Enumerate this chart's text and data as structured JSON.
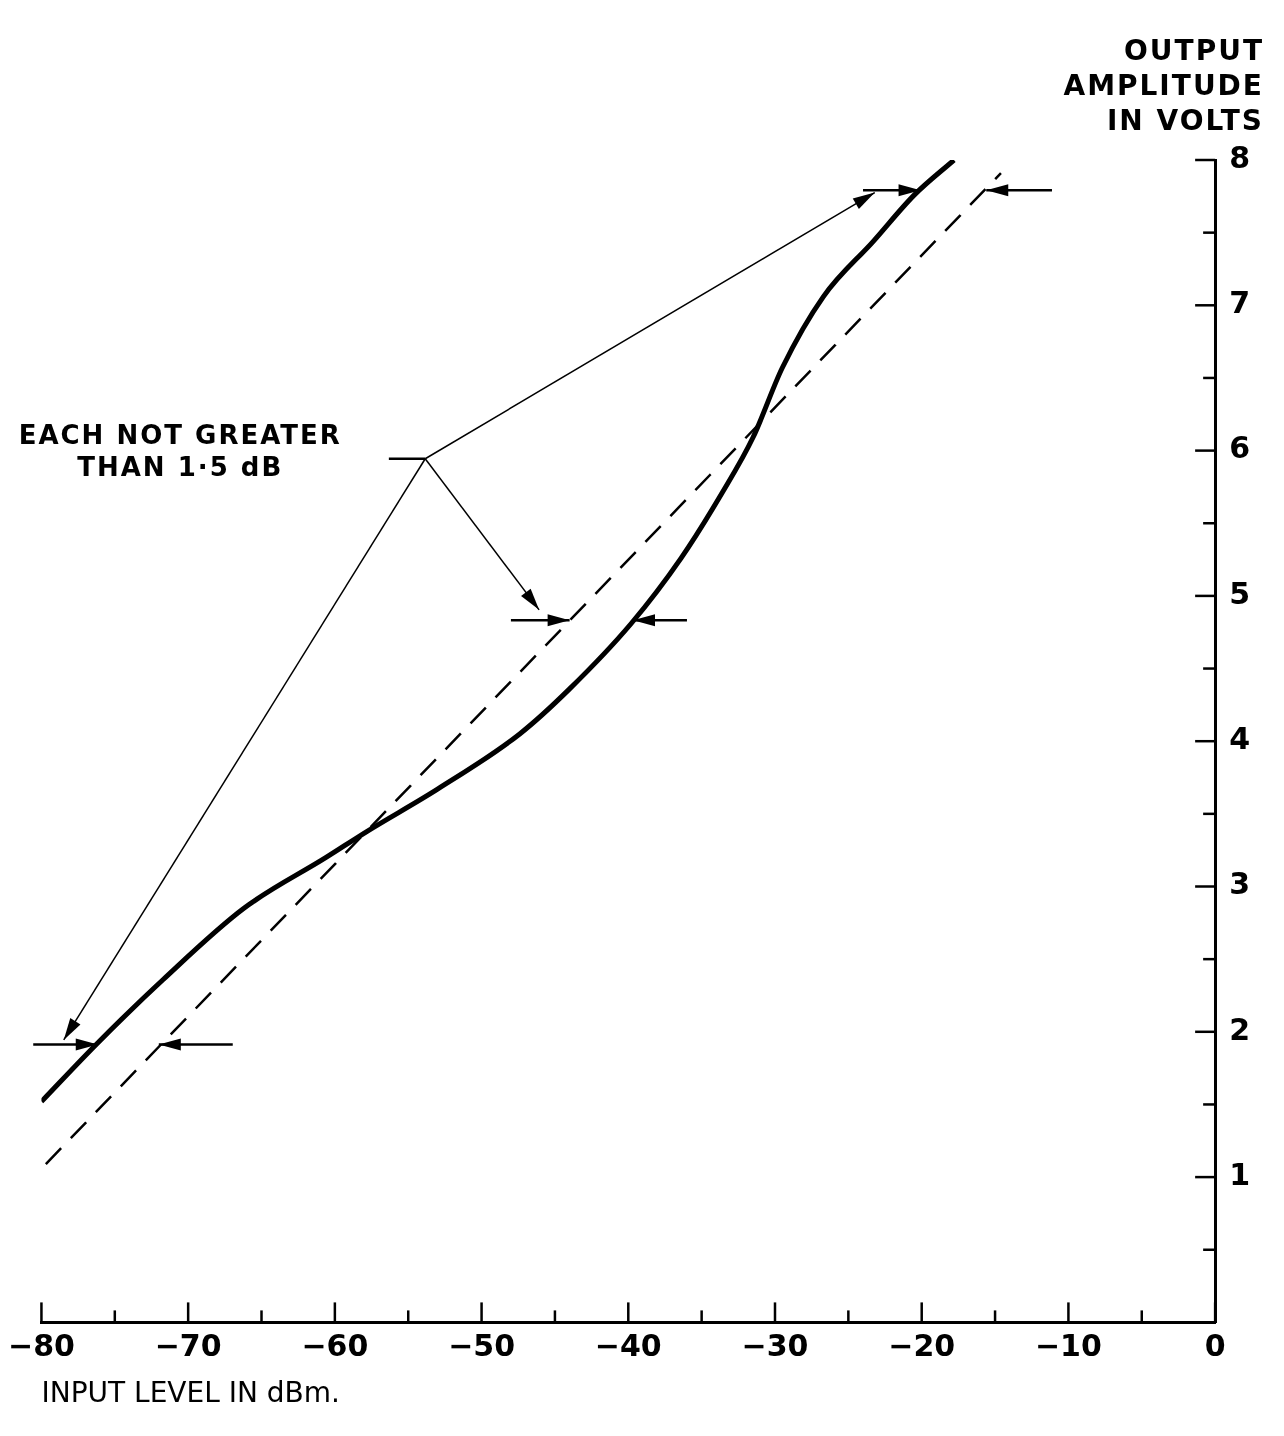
{
  "chart_data": {
    "type": "line",
    "xlabel": "INPUT LEVEL IN dBm.",
    "ylabel": "OUTPUT AMPLITUDE IN VOLTS",
    "annotations": [
      "EACH NOT GREATER THAN 1·5 dB"
    ],
    "series": [
      {
        "type": "line",
        "color": "#000000",
        "line_style": "solid",
        "x": [
          -80,
          -76.2,
          -71.7,
          -66.2,
          -60.6,
          -57.8,
          -53,
          -47.4,
          -44,
          -39.8,
          -36.4,
          -33.6,
          -31.5,
          -29.5,
          -26.7,
          -23.3,
          -20.5,
          -17.8
        ],
        "values": [
          1.52,
          1.92,
          2.36,
          2.85,
          3.2,
          3.38,
          3.67,
          4.05,
          4.36,
          4.81,
          5.26,
          5.71,
          6.09,
          6.57,
          7.06,
          7.44,
          7.76,
          8.0
        ]
      },
      {
        "type": "line",
        "color": "#000000",
        "line_style": "dashed",
        "x": [
          -79.7,
          -14.6
        ],
        "values": [
          1.09,
          7.91
        ]
      }
    ],
    "xlim": [
      -80,
      0
    ],
    "ylim": [
      0,
      8
    ],
    "xticks": [
      -80,
      {
        "value": -75,
        "label": null
      },
      -70,
      {
        "value": -65,
        "label": null
      },
      -60,
      {
        "value": -55,
        "label": null
      },
      -50,
      {
        "value": -45,
        "label": null
      },
      -40,
      {
        "value": -35,
        "label": null
      },
      -30,
      {
        "value": -25,
        "label": null
      },
      -20,
      {
        "value": -15,
        "label": null
      },
      -10,
      {
        "value": -5,
        "label": null
      },
      0
    ],
    "yticks": [
      {
        "value": 0,
        "label": null
      },
      {
        "value": 0.5,
        "label": null
      },
      1,
      {
        "value": 1.5,
        "label": null
      },
      2,
      {
        "value": 2.5,
        "label": null
      },
      3,
      {
        "value": 3.5,
        "label": null
      },
      4,
      {
        "value": 4.5,
        "label": null
      },
      5,
      {
        "value": 5.5,
        "label": null
      },
      6,
      {
        "value": 6.5,
        "label": null
      },
      7,
      {
        "value": 7.5,
        "label": null
      },
      8
    ],
    "grid": false,
    "legend": false,
    "marker": "none"
  }
}
